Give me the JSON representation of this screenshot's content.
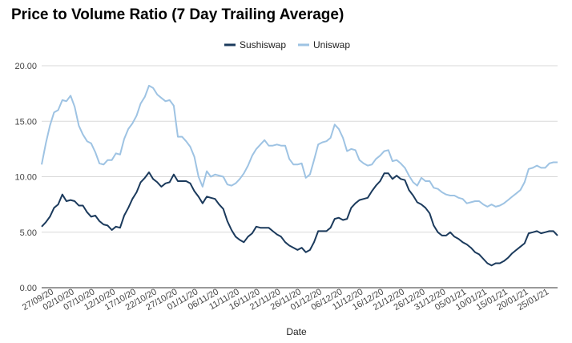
{
  "chart_data": {
    "type": "line",
    "title": "Price to Volume Ratio (7 Day Trailing Average)",
    "xlabel": "Date",
    "ylabel": "",
    "ylim": [
      0,
      20
    ],
    "yticks": [
      "0.00",
      "5.00",
      "10.00",
      "15.00",
      "20.00"
    ],
    "x_tick_labels": [
      "27/09/20",
      "02/10/20",
      "07/10/20",
      "12/10/20",
      "17/10/20",
      "22/10/20",
      "27/10/20",
      "01/11/20",
      "06/11/20",
      "11/11/20",
      "16/11/20",
      "21/11/20",
      "26/11/20",
      "01/12/20",
      "06/12/20",
      "11/12/20",
      "16/12/20",
      "21/12/20",
      "26/12/20",
      "31/12/20",
      "05/01/21",
      "10/01/21",
      "15/01/21",
      "20/01/21",
      "25/01/21"
    ],
    "x_start": "2020-09-24",
    "grid": "horizontal",
    "legend_position": "top",
    "series": [
      {
        "name": "Sushiswap",
        "color": "#1b3a5c",
        "values": [
          5.5,
          5.9,
          6.4,
          7.2,
          7.5,
          8.4,
          7.8,
          7.9,
          7.8,
          7.4,
          7.4,
          6.8,
          6.4,
          6.5,
          6.0,
          5.7,
          5.6,
          5.2,
          5.5,
          5.4,
          6.5,
          7.2,
          8.0,
          8.6,
          9.5,
          9.9,
          10.4,
          9.8,
          9.5,
          9.1,
          9.4,
          9.5,
          10.2,
          9.6,
          9.6,
          9.6,
          9.4,
          8.7,
          8.2,
          7.6,
          8.2,
          8.1,
          8.0,
          7.5,
          7.1,
          6.0,
          5.2,
          4.6,
          4.3,
          4.1,
          4.6,
          4.9,
          5.5,
          5.4,
          5.4,
          5.4,
          5.1,
          4.8,
          4.6,
          4.1,
          3.8,
          3.6,
          3.4,
          3.6,
          3.2,
          3.4,
          4.1,
          5.1,
          5.1,
          5.1,
          5.4,
          6.2,
          6.3,
          6.1,
          6.2,
          7.2,
          7.6,
          7.9,
          8.0,
          8.1,
          8.7,
          9.2,
          9.6,
          10.3,
          10.3,
          9.8,
          10.1,
          9.8,
          9.7,
          8.8,
          8.3,
          7.7,
          7.5,
          7.2,
          6.7,
          5.6,
          5.0,
          4.7,
          4.7,
          5.0,
          4.6,
          4.4,
          4.1,
          3.9,
          3.6,
          3.2,
          3.0,
          2.6,
          2.2,
          2.0,
          2.2,
          2.2,
          2.4,
          2.7,
          3.1,
          3.4,
          3.7,
          4.0,
          4.9,
          5.0,
          5.1,
          4.9,
          5.0,
          5.1,
          5.1,
          4.7
        ]
      },
      {
        "name": "Uniswap",
        "color": "#9ec3e3",
        "values": [
          11.1,
          13.0,
          14.6,
          15.8,
          16.0,
          16.9,
          16.8,
          17.3,
          16.3,
          14.6,
          13.8,
          13.2,
          13.0,
          12.2,
          11.2,
          11.1,
          11.5,
          11.5,
          12.1,
          12.0,
          13.4,
          14.3,
          14.8,
          15.5,
          16.6,
          17.2,
          18.2,
          18.0,
          17.4,
          17.1,
          16.8,
          16.9,
          16.4,
          13.6,
          13.6,
          13.2,
          12.7,
          11.8,
          10.0,
          9.1,
          10.5,
          10.0,
          10.2,
          10.1,
          10.0,
          9.3,
          9.2,
          9.4,
          9.8,
          10.3,
          11.0,
          11.9,
          12.5,
          12.9,
          13.3,
          12.8,
          12.8,
          12.9,
          12.8,
          12.8,
          11.6,
          11.1,
          11.1,
          11.2,
          9.9,
          10.2,
          11.5,
          12.9,
          13.1,
          13.2,
          13.5,
          14.7,
          14.3,
          13.5,
          12.3,
          12.5,
          12.4,
          11.5,
          11.2,
          11.0,
          11.1,
          11.6,
          11.9,
          12.3,
          12.4,
          11.4,
          11.5,
          11.2,
          10.8,
          10.1,
          9.5,
          9.2,
          9.9,
          9.6,
          9.6,
          9.0,
          8.9,
          8.6,
          8.4,
          8.3,
          8.3,
          8.1,
          8.0,
          7.6,
          7.7,
          7.8,
          7.8,
          7.5,
          7.3,
          7.5,
          7.3,
          7.4,
          7.6,
          7.9,
          8.2,
          8.5,
          8.8,
          9.5,
          10.7,
          10.8,
          11.0,
          10.8,
          10.8,
          11.2,
          11.3,
          11.3
        ]
      }
    ]
  }
}
